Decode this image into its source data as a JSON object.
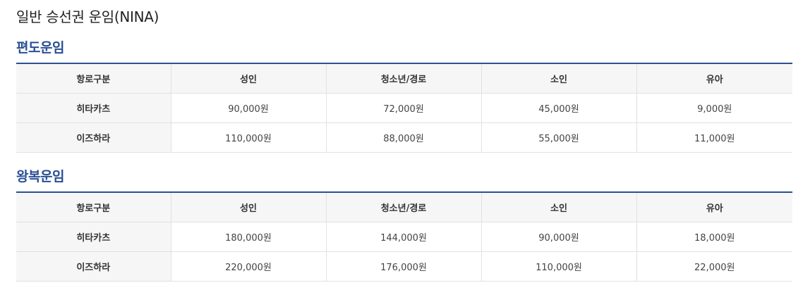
{
  "page": {
    "title": "일반 승선권 운임(NINA)"
  },
  "colors": {
    "accent": "#2b4f94",
    "header_bg": "#f6f6f6",
    "border": "#e1e1e1"
  },
  "sections": [
    {
      "title": "편도운임",
      "headers": [
        "항로구분",
        "성인",
        "청소년/경로",
        "소인",
        "유아"
      ],
      "rows": [
        {
          "route": "히타카츠",
          "adult": "90,000원",
          "youth_senior": "72,000원",
          "child": "45,000원",
          "infant": "9,000원"
        },
        {
          "route": "이즈하라",
          "adult": "110,000원",
          "youth_senior": "88,000원",
          "child": "55,000원",
          "infant": "11,000원"
        }
      ]
    },
    {
      "title": "왕복운임",
      "headers": [
        "항로구분",
        "성인",
        "청소년/경로",
        "소인",
        "유아"
      ],
      "rows": [
        {
          "route": "히타카츠",
          "adult": "180,000원",
          "youth_senior": "144,000원",
          "child": "90,000원",
          "infant": "18,000원"
        },
        {
          "route": "이즈하라",
          "adult": "220,000원",
          "youth_senior": "176,000원",
          "child": "110,000원",
          "infant": "22,000원"
        }
      ]
    }
  ]
}
